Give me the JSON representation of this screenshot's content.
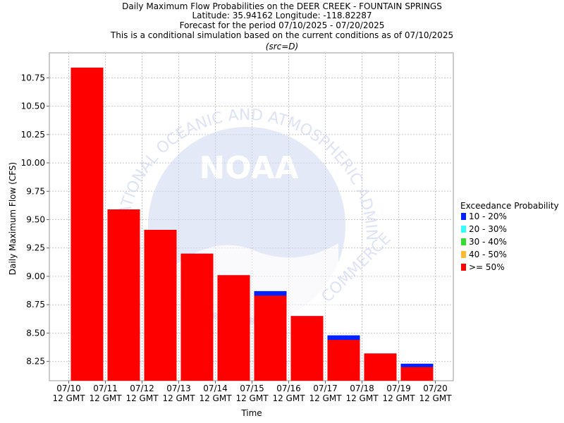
{
  "chart_data": {
    "type": "bar",
    "title": [
      "Daily Maximum Flow Probabilities on the DEER CREEK - FOUNTAIN SPRINGS",
      "Latitude: 35.94162 Longitude: -118.82287",
      "Forecast for the period 07/10/2025 - 07/20/2025",
      "This is a conditional simulation based on the current conditions as of 07/10/2025"
    ],
    "subtitle": "(src=D)",
    "xlabel": "Time",
    "ylabel": "Daily Maximum Flow (CFS)",
    "ylim": [
      8.08,
      10.97
    ],
    "yticks": [
      "8.25",
      "8.50",
      "8.75",
      "9.00",
      "9.25",
      "9.50",
      "9.75",
      "10.00",
      "10.25",
      "10.50",
      "10.75"
    ],
    "ytick_values": [
      8.25,
      8.5,
      8.75,
      9.0,
      9.25,
      9.5,
      9.75,
      10.0,
      10.25,
      10.5,
      10.75
    ],
    "xticks": [
      [
        "07/10",
        "12 GMT"
      ],
      [
        "07/11",
        "12 GMT"
      ],
      [
        "07/12",
        "12 GMT"
      ],
      [
        "07/13",
        "12 GMT"
      ],
      [
        "07/14",
        "12 GMT"
      ],
      [
        "07/15",
        "12 GMT"
      ],
      [
        "07/16",
        "12 GMT"
      ],
      [
        "07/17",
        "12 GMT"
      ],
      [
        "07/18",
        "12 GMT"
      ],
      [
        "07/19",
        "12 GMT"
      ],
      [
        "07/20",
        "12 GMT"
      ]
    ],
    "categories": [
      "07/10",
      "07/11",
      "07/12",
      "07/13",
      "07/14",
      "07/15",
      "07/16",
      "07/17",
      "07/18",
      "07/19"
    ],
    "series": [
      {
        "name": ">= 50%",
        "color": "#ff0000",
        "values": [
          10.84,
          9.59,
          9.41,
          9.2,
          9.01,
          8.83,
          8.65,
          8.44,
          8.32,
          8.2
        ]
      },
      {
        "name": "10 - 20%",
        "color": "#0022ff",
        "values": [
          10.84,
          9.59,
          9.41,
          9.2,
          9.01,
          8.87,
          8.65,
          8.48,
          8.32,
          8.23
        ]
      }
    ],
    "legend": {
      "title": "Exceedance Probability",
      "placement": "right",
      "items": [
        {
          "label": "10 - 20%",
          "color": "#0022ff"
        },
        {
          "label": "20 - 30%",
          "color": "#33ffff"
        },
        {
          "label": "30 - 40%",
          "color": "#33dd33"
        },
        {
          "label": "40 - 50%",
          "color": "#ffbb33"
        },
        {
          "label": ">= 50%",
          "color": "#ff0000"
        }
      ]
    },
    "grid": true,
    "watermark": {
      "text": "NOAA",
      "ring_text": "NATIONAL OCEANIC AND ATMOSPHERIC ADMINISTRATION",
      "bottom_text": "COMMERCE"
    }
  }
}
